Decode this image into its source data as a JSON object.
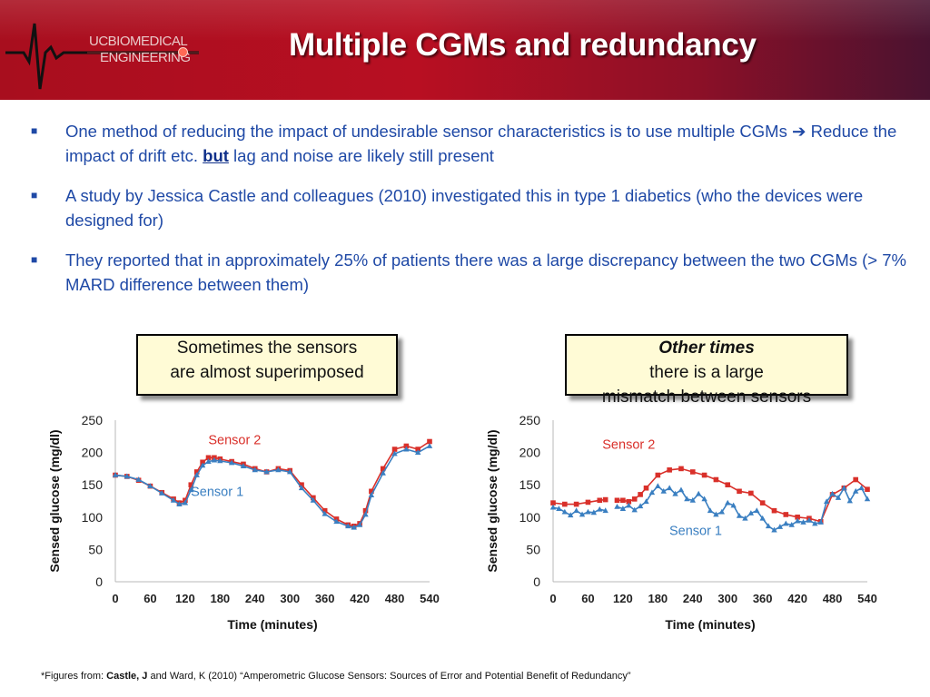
{
  "slide": {
    "title": "Multiple CGMs and redundancy",
    "logo": {
      "line1": "UCBIOMEDICAL",
      "line2": "ENGINEERING",
      "icon": "heartbeat-waveform-icon"
    },
    "bullets": [
      {
        "parts": [
          "One method of reducing the impact of undesirable sensor characteristics is to use multiple CGMs ",
          "➔",
          " Reduce the impact of drift etc. ",
          "but",
          " lag and noise are likely still present"
        ]
      },
      {
        "text": "A study by Jessica Castle and colleagues (2010) investigated this in type 1 diabetics (who the devices were designed for)"
      },
      {
        "text": "They reported that in approximately 25% of patients there was a large discrepancy between the two CGMs (> 7% MARD difference between them)"
      }
    ],
    "callout_left": {
      "line1": "Sometimes the sensors",
      "line2": "are almost superimposed"
    },
    "callout_right": {
      "em": "Other times",
      "rest": " there is a large",
      "line2": "mismatch between sensors"
    },
    "footnote": {
      "prefix": "*Figures from: ",
      "author": "Castle, J",
      "rest": " and Ward, K (2010) “Amperometric Glucose Sensors: Sources of Error and Potential Benefit of Redundancy”"
    },
    "colors": {
      "header": "#b30f20",
      "bullet_text": "#1f49a6",
      "sensor1": "#3a7fc1",
      "sensor2": "#d9302a",
      "callout_bg": "#fffbd6"
    }
  },
  "chart_data": [
    {
      "type": "scatter",
      "title": "",
      "xlabel": "Time (minutes)",
      "ylabel": "Sensed glucose (mg/dl)",
      "xlim": [
        0,
        540
      ],
      "ylim": [
        0,
        250
      ],
      "xticks": [
        0,
        60,
        120,
        180,
        240,
        300,
        360,
        420,
        480,
        540
      ],
      "yticks": [
        0,
        50,
        100,
        150,
        200,
        250
      ],
      "grid": false,
      "series": [
        {
          "name": "Sensor 2",
          "color": "#d9302a",
          "marker": "square",
          "x": [
            0,
            20,
            40,
            60,
            80,
            100,
            110,
            120,
            130,
            140,
            150,
            160,
            170,
            180,
            200,
            220,
            240,
            260,
            280,
            300,
            320,
            340,
            360,
            380,
            400,
            410,
            420,
            430,
            440,
            460,
            480,
            500,
            520,
            540
          ],
          "y": [
            165,
            163,
            157,
            148,
            138,
            128,
            122,
            126,
            150,
            170,
            185,
            192,
            192,
            190,
            186,
            182,
            175,
            170,
            175,
            172,
            150,
            130,
            110,
            97,
            88,
            86,
            90,
            110,
            140,
            175,
            205,
            210,
            205,
            217
          ]
        },
        {
          "name": "Sensor 1",
          "color": "#3a7fc1",
          "marker": "triangle",
          "x": [
            0,
            20,
            40,
            60,
            80,
            100,
            110,
            120,
            130,
            140,
            150,
            160,
            170,
            180,
            200,
            220,
            240,
            260,
            280,
            300,
            320,
            340,
            360,
            380,
            400,
            410,
            420,
            430,
            440,
            460,
            480,
            500,
            520,
            540
          ],
          "y": [
            165,
            163,
            158,
            148,
            137,
            126,
            120,
            122,
            142,
            165,
            180,
            186,
            188,
            187,
            184,
            179,
            173,
            170,
            173,
            170,
            145,
            126,
            105,
            93,
            86,
            84,
            88,
            104,
            134,
            168,
            198,
            205,
            200,
            210
          ]
        }
      ],
      "annotations": [
        {
          "text": "Sensor 2",
          "x": 205,
          "y": 213
        },
        {
          "text": "Sensor 1",
          "x": 175,
          "y": 133
        }
      ]
    },
    {
      "type": "scatter",
      "title": "",
      "xlabel": "Time (minutes)",
      "ylabel": "Sensed glucose (mg/dl)",
      "xlim": [
        0,
        540
      ],
      "ylim": [
        0,
        250
      ],
      "xticks": [
        0,
        60,
        120,
        180,
        240,
        300,
        360,
        420,
        480,
        540
      ],
      "yticks": [
        0,
        50,
        100,
        150,
        200,
        250
      ],
      "grid": false,
      "series": [
        {
          "name": "Sensor 2",
          "color": "#d9302a",
          "marker": "square",
          "x": [
            0,
            20,
            40,
            60,
            80,
            90,
            100,
            110,
            120,
            130,
            140,
            150,
            160,
            180,
            200,
            220,
            240,
            260,
            280,
            300,
            320,
            340,
            360,
            380,
            400,
            420,
            440,
            460,
            480,
            500,
            520,
            540
          ],
          "y": [
            122,
            120,
            120,
            123,
            126,
            127,
            null,
            126,
            126,
            124,
            128,
            135,
            145,
            165,
            173,
            175,
            170,
            165,
            158,
            150,
            140,
            137,
            122,
            110,
            104,
            100,
            98,
            93,
            135,
            145,
            158,
            143
          ]
        },
        {
          "name": "Sensor 1",
          "color": "#3a7fc1",
          "marker": "triangle",
          "x": [
            0,
            10,
            20,
            30,
            40,
            50,
            60,
            70,
            80,
            90,
            100,
            110,
            120,
            130,
            140,
            150,
            160,
            170,
            180,
            190,
            200,
            210,
            220,
            230,
            240,
            250,
            260,
            270,
            280,
            290,
            300,
            310,
            320,
            330,
            340,
            350,
            360,
            370,
            380,
            390,
            400,
            410,
            420,
            430,
            440,
            450,
            460,
            470,
            480,
            490,
            500,
            510,
            520,
            530,
            540
          ],
          "y": [
            115,
            113,
            108,
            103,
            110,
            104,
            108,
            107,
            112,
            110,
            null,
            116,
            113,
            118,
            111,
            117,
            124,
            138,
            148,
            140,
            145,
            136,
            142,
            128,
            126,
            136,
            128,
            110,
            104,
            108,
            122,
            118,
            102,
            98,
            106,
            110,
            98,
            86,
            80,
            85,
            90,
            88,
            94,
            92,
            95,
            90,
            92,
            124,
            136,
            130,
            145,
            125,
            140,
            145,
            128
          ]
        }
      ],
      "annotations": [
        {
          "text": "Sensor 2",
          "x": 130,
          "y": 206
        },
        {
          "text": "Sensor 1",
          "x": 245,
          "y": 72
        }
      ]
    }
  ]
}
